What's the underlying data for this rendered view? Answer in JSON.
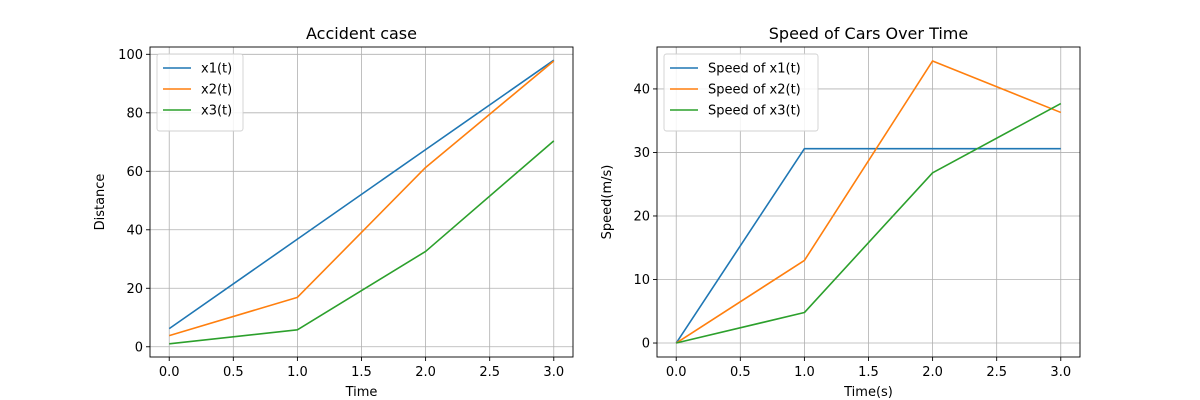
{
  "chart_data": [
    {
      "type": "line",
      "title": "Accident case",
      "xlabel": "Time",
      "ylabel": "Distance",
      "xlim": [
        -0.15,
        3.15
      ],
      "ylim": [
        -3.5,
        102.5
      ],
      "xticks": [
        0.0,
        0.5,
        1.0,
        1.5,
        2.0,
        2.5,
        3.0
      ],
      "xtick_labels": [
        "0.0",
        "0.5",
        "1.0",
        "1.5",
        "2.0",
        "2.5",
        "3.0"
      ],
      "yticks": [
        0,
        20,
        40,
        60,
        80,
        100
      ],
      "ytick_labels": [
        "0",
        "20",
        "40",
        "60",
        "80",
        "100"
      ],
      "grid": true,
      "legend_position": "upper-left",
      "x": [
        0,
        1,
        2,
        3
      ],
      "series": [
        {
          "name": "x1(t)",
          "color": "#1f77b4",
          "values": [
            6.2,
            36.8,
            67.4,
            98.0
          ]
        },
        {
          "name": "x2(t)",
          "color": "#ff7f0e",
          "values": [
            3.8,
            16.9,
            61.3,
            97.7
          ]
        },
        {
          "name": "x3(t)",
          "color": "#2ca02c",
          "values": [
            1.0,
            5.8,
            32.6,
            70.4
          ]
        }
      ]
    },
    {
      "type": "line",
      "title": "Speed of Cars Over Time",
      "xlabel": "Time(s)",
      "ylabel": "Speed(m/s)",
      "xlim": [
        -0.15,
        3.15
      ],
      "ylim": [
        -2.2,
        46.6
      ],
      "xticks": [
        0.0,
        0.5,
        1.0,
        1.5,
        2.0,
        2.5,
        3.0
      ],
      "xtick_labels": [
        "0.0",
        "0.5",
        "1.0",
        "1.5",
        "2.0",
        "2.5",
        "3.0"
      ],
      "yticks": [
        0,
        10,
        20,
        30,
        40
      ],
      "ytick_labels": [
        "0",
        "10",
        "20",
        "30",
        "40"
      ],
      "grid": true,
      "legend_position": "upper-left",
      "x": [
        0,
        1,
        2,
        3
      ],
      "series": [
        {
          "name": "Speed of x1(t)",
          "color": "#1f77b4",
          "values": [
            0,
            30.6,
            30.6,
            30.6
          ]
        },
        {
          "name": "Speed of x2(t)",
          "color": "#ff7f0e",
          "values": [
            0,
            13.0,
            44.4,
            36.3
          ]
        },
        {
          "name": "Speed of x3(t)",
          "color": "#2ca02c",
          "values": [
            0,
            4.8,
            26.8,
            37.7
          ]
        }
      ]
    }
  ]
}
